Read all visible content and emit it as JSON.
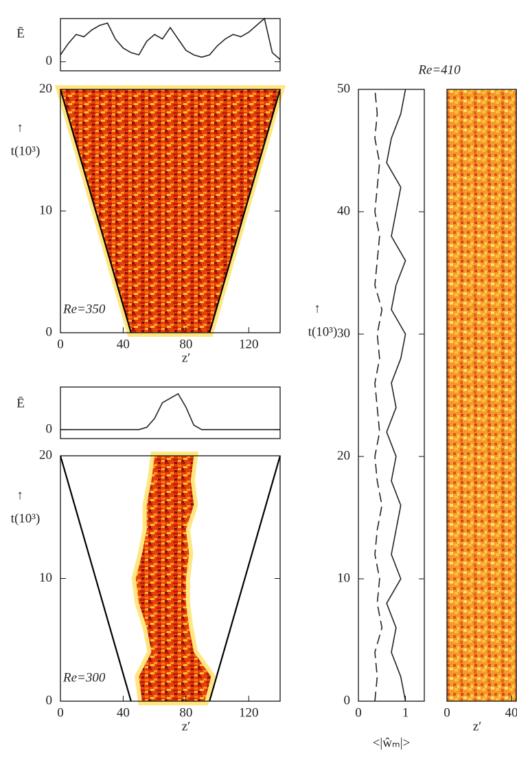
{
  "chart_data": [
    {
      "type": "line",
      "ylabel": "Ē",
      "xlim": [
        0,
        140
      ],
      "ylim": [
        -0.4,
        1.9
      ],
      "yticks": [
        0
      ],
      "x": [
        0,
        5,
        10,
        15,
        20,
        25,
        30,
        35,
        40,
        45,
        50,
        55,
        60,
        65,
        70,
        75,
        80,
        85,
        90,
        95,
        100,
        105,
        110,
        115,
        120,
        125,
        130,
        135,
        140
      ],
      "series": [
        {
          "values": [
            0.3,
            0.8,
            1.2,
            1.1,
            1.4,
            1.6,
            1.7,
            1.0,
            0.6,
            0.4,
            0.3,
            0.9,
            1.2,
            1.0,
            1.5,
            1.0,
            0.5,
            0.3,
            0.2,
            0.3,
            0.7,
            1.0,
            1.2,
            1.1,
            1.3,
            1.6,
            1.9,
            0.4,
            0.1
          ],
          "color": "#222"
        }
      ]
    },
    {
      "type": "heatmap",
      "annotation": "Re=350",
      "xlabel": "z′",
      "ylabel": "t(10³)",
      "ylabel_arrow": "↑",
      "xlim": [
        0,
        140
      ],
      "xticks": [
        0,
        40,
        80,
        120
      ],
      "ylim": [
        0,
        20
      ],
      "yticks": [
        0,
        10,
        20
      ],
      "t": [
        0,
        2,
        4,
        6,
        8,
        10,
        12,
        14,
        16,
        18,
        20
      ],
      "boundary_left": [
        45,
        40.5,
        36,
        31.5,
        27,
        22.5,
        18,
        13.5,
        9,
        4.5,
        0
      ],
      "boundary_right": [
        95,
        99.5,
        104,
        108.5,
        113,
        117.5,
        122,
        126.5,
        131,
        135.5,
        140
      ]
    },
    {
      "type": "line",
      "ylabel": "Ē",
      "xlim": [
        0,
        140
      ],
      "ylim": [
        -0.4,
        1.9
      ],
      "yticks": [
        0
      ],
      "x": [
        0,
        5,
        10,
        15,
        20,
        25,
        30,
        35,
        40,
        45,
        50,
        55,
        60,
        65,
        70,
        75,
        80,
        85,
        90,
        95,
        100,
        105,
        110,
        115,
        120,
        125,
        130,
        135,
        140
      ],
      "series": [
        {
          "values": [
            0,
            0,
            0,
            0,
            0,
            0,
            0,
            0,
            0,
            0,
            0,
            0.1,
            0.5,
            1.2,
            1.4,
            1.6,
            1.0,
            0.2,
            0,
            0,
            0,
            0,
            0,
            0,
            0,
            0,
            0,
            0,
            0
          ],
          "color": "#222"
        }
      ]
    },
    {
      "type": "heatmap",
      "annotation": "Re=300",
      "xlabel": "z′",
      "ylabel": "t(10³)",
      "ylabel_arrow": "↑",
      "xlim": [
        0,
        140
      ],
      "xticks": [
        0,
        40,
        80,
        120
      ],
      "ylim": [
        0,
        20
      ],
      "yticks": [
        0,
        10,
        20
      ],
      "t": [
        0,
        2,
        4,
        6,
        8,
        10,
        12,
        14,
        16,
        18,
        20
      ],
      "boundary_left": [
        45,
        40.5,
        36,
        31.5,
        27,
        22.5,
        18,
        13.5,
        9,
        4.5,
        0
      ],
      "boundary_right": [
        95,
        99.5,
        104,
        108.5,
        113,
        117.5,
        122,
        126.5,
        131,
        135.5,
        140
      ],
      "band_left": [
        52,
        50,
        58,
        55,
        50,
        48,
        52,
        55,
        55,
        58,
        60
      ],
      "band_right": [
        92,
        96,
        85,
        82,
        80,
        80,
        82,
        80,
        85,
        83,
        85
      ]
    },
    {
      "type": "line",
      "orientation": "vertical",
      "title": "Re=410",
      "xlabel": "<|ŵₘ|>",
      "ylabel": "t(10³)",
      "ylabel_arrow": "↑",
      "xlim": [
        0,
        1.4
      ],
      "xticks": [
        0,
        1
      ],
      "ylim": [
        0,
        50
      ],
      "yticks": [
        0,
        10,
        20,
        30,
        40,
        50
      ],
      "y": [
        0,
        2,
        4,
        6,
        8,
        10,
        12,
        14,
        16,
        18,
        20,
        22,
        24,
        26,
        28,
        30,
        32,
        34,
        36,
        38,
        40,
        42,
        44,
        46,
        48,
        50
      ],
      "series": [
        {
          "values": [
            1.0,
            0.9,
            0.7,
            0.8,
            0.6,
            0.9,
            0.7,
            0.8,
            0.9,
            0.7,
            0.8,
            0.6,
            0.8,
            0.7,
            0.9,
            1.0,
            0.7,
            0.8,
            1.0,
            0.7,
            0.8,
            0.9,
            0.6,
            0.7,
            0.9,
            1.0
          ],
          "color": "#222",
          "dash": false
        },
        {
          "values": [
            0.35,
            0.4,
            0.35,
            0.5,
            0.4,
            0.45,
            0.35,
            0.4,
            0.5,
            0.4,
            0.35,
            0.45,
            0.4,
            0.35,
            0.45,
            0.4,
            0.5,
            0.35,
            0.4,
            0.45,
            0.35,
            0.4,
            0.45,
            0.35,
            0.4,
            0.35
          ],
          "color": "#222",
          "dash": true
        }
      ]
    },
    {
      "type": "heatmap",
      "xlabel": "z′",
      "xlim": [
        0,
        40
      ],
      "xticks": [
        0,
        40
      ],
      "ylim": [
        0,
        50
      ]
    }
  ]
}
